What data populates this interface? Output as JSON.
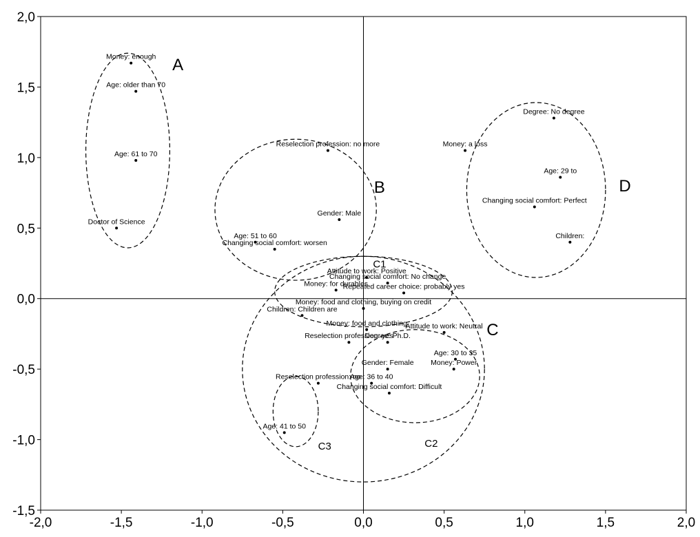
{
  "chart_data": {
    "type": "scatter",
    "title": "",
    "xlabel": "",
    "ylabel": "",
    "xlim": [
      -2.0,
      2.0
    ],
    "ylim": [
      -1.5,
      2.0
    ],
    "xticks": [
      -2.0,
      -1.5,
      -1.0,
      -0.5,
      0.0,
      0.5,
      1.0,
      1.5,
      2.0
    ],
    "yticks": [
      -1.5,
      -1.0,
      -0.5,
      0.0,
      0.5,
      1.0,
      1.5,
      2.0
    ],
    "xtick_labels": [
      "-2,0",
      "-1,5",
      "-1,0",
      "-0,5",
      "0,0",
      "0,5",
      "1,0",
      "1,5",
      "2,0"
    ],
    "ytick_labels": [
      "-1,5",
      "-1,0",
      "-0,5",
      "0,0",
      "0,5",
      "1,0",
      "1,5",
      "2,0"
    ],
    "grid": false,
    "zero_lines": true,
    "points": [
      {
        "label": "Money: enough",
        "x": -1.44,
        "y": 1.67
      },
      {
        "label": "Age: older than 70",
        "x": -1.41,
        "y": 1.47
      },
      {
        "label": "Age: 61 to 70",
        "x": -1.41,
        "y": 0.98
      },
      {
        "label": "Doctor of Science",
        "x": -1.53,
        "y": 0.5
      },
      {
        "label": "Reselection profession: no more",
        "x": -0.22,
        "y": 1.05
      },
      {
        "label": "Gender: Male",
        "x": -0.15,
        "y": 0.56
      },
      {
        "label": "Age: 51 to 60",
        "x": -0.67,
        "y": 0.4
      },
      {
        "label": "Changing social comfort: worsen",
        "x": -0.55,
        "y": 0.35
      },
      {
        "label": "Degree: No degree",
        "x": 1.18,
        "y": 1.28
      },
      {
        "label": "Money: a loss",
        "x": 0.63,
        "y": 1.05
      },
      {
        "label": "Age: 29 to",
        "x": 1.22,
        "y": 0.86
      },
      {
        "label": "Changing social comfort: Perfect",
        "x": 1.06,
        "y": 0.65
      },
      {
        "label": "Children:",
        "x": 1.28,
        "y": 0.4
      },
      {
        "label": "Attitude to work: Positive",
        "x": 0.02,
        "y": 0.15
      },
      {
        "label": "Changing social comfort: No change",
        "x": 0.15,
        "y": 0.11
      },
      {
        "label": "Money: for durables",
        "x": -0.17,
        "y": 0.06
      },
      {
        "label": "Repeated career choice: probably yes",
        "x": 0.25,
        "y": 0.04
      },
      {
        "label": "Money: food and clothing, buying on credit",
        "x": 0.0,
        "y": -0.07
      },
      {
        "label": "Children: Children are",
        "x": -0.38,
        "y": -0.12
      },
      {
        "label": "Money: food and clothing",
        "x": 0.02,
        "y": -0.22
      },
      {
        "label": "Attitude to work: Neutral",
        "x": 0.5,
        "y": -0.24
      },
      {
        "label": "Degree: Ph.D.",
        "x": 0.15,
        "y": -0.31
      },
      {
        "label": "Reselection profession: yes",
        "x": -0.09,
        "y": -0.31
      },
      {
        "label": "Age: 30 to 35",
        "x": 0.57,
        "y": -0.43
      },
      {
        "label": "Gender: Female",
        "x": 0.15,
        "y": -0.5
      },
      {
        "label": "Money: Power",
        "x": 0.56,
        "y": -0.5
      },
      {
        "label": "Age: 36 to 40",
        "x": 0.05,
        "y": -0.6
      },
      {
        "label": "Reselection profession: no",
        "x": -0.28,
        "y": -0.6
      },
      {
        "label": "Changing social comfort: Difficult",
        "x": 0.16,
        "y": -0.67
      },
      {
        "label": "Age: 41 to 50",
        "x": -0.49,
        "y": -0.95
      }
    ],
    "group_labels": [
      {
        "text": "A",
        "x": -1.15,
        "y": 1.62
      },
      {
        "text": "B",
        "x": 0.1,
        "y": 0.75
      },
      {
        "text": "D",
        "x": 1.62,
        "y": 0.76
      },
      {
        "text": "C",
        "x": 0.8,
        "y": -0.26
      },
      {
        "text": "C1",
        "x": 0.1,
        "y": 0.22
      },
      {
        "text": "C2",
        "x": 0.42,
        "y": -1.05
      },
      {
        "text": "C3",
        "x": -0.24,
        "y": -1.07
      }
    ],
    "clusters": [
      {
        "name": "A",
        "cx": -1.46,
        "cy": 1.05,
        "rx": 0.26,
        "ry": 0.69
      },
      {
        "name": "B",
        "cx": -0.42,
        "cy": 0.63,
        "rx": 0.5,
        "ry": 0.5
      },
      {
        "name": "D",
        "cx": 1.07,
        "cy": 0.77,
        "rx": 0.43,
        "ry": 0.62
      },
      {
        "name": "C",
        "cx": 0.0,
        "cy": -0.5,
        "rx": 0.75,
        "ry": 0.8
      },
      {
        "name": "C1",
        "cx": 0.0,
        "cy": 0.05,
        "rx": 0.55,
        "ry": 0.25
      },
      {
        "name": "C2",
        "cx": 0.32,
        "cy": -0.55,
        "rx": 0.4,
        "ry": 0.33
      },
      {
        "name": "C3",
        "cx": -0.42,
        "cy": -0.8,
        "rx": 0.14,
        "ry": 0.25
      }
    ]
  }
}
